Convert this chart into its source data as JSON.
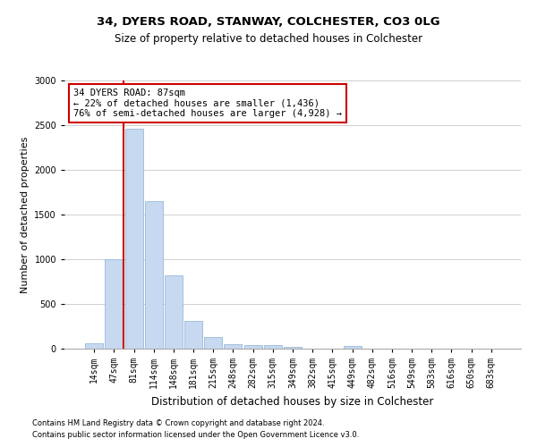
{
  "title1": "34, DYERS ROAD, STANWAY, COLCHESTER, CO3 0LG",
  "title2": "Size of property relative to detached houses in Colchester",
  "xlabel": "Distribution of detached houses by size in Colchester",
  "ylabel": "Number of detached properties",
  "bar_labels": [
    "14sqm",
    "47sqm",
    "81sqm",
    "114sqm",
    "148sqm",
    "181sqm",
    "215sqm",
    "248sqm",
    "282sqm",
    "315sqm",
    "349sqm",
    "382sqm",
    "415sqm",
    "449sqm",
    "482sqm",
    "516sqm",
    "549sqm",
    "583sqm",
    "616sqm",
    "650sqm",
    "683sqm"
  ],
  "bar_values": [
    60,
    1000,
    2460,
    1650,
    820,
    310,
    130,
    55,
    45,
    45,
    20,
    0,
    0,
    30,
    0,
    0,
    0,
    0,
    0,
    0,
    0
  ],
  "bar_color": "#c6d9f0",
  "bar_edge_color": "#9ab8d8",
  "grid_color": "#d0d0d0",
  "vline_x": 1.5,
  "vline_color": "#cc0000",
  "annotation_text": "34 DYERS ROAD: 87sqm\n← 22% of detached houses are smaller (1,436)\n76% of semi-detached houses are larger (4,928) →",
  "annotation_box_color": "#ffffff",
  "annotation_box_edge": "#cc0000",
  "footer1": "Contains HM Land Registry data © Crown copyright and database right 2024.",
  "footer2": "Contains public sector information licensed under the Open Government Licence v3.0.",
  "ylim": [
    0,
    3000
  ],
  "yticks": [
    0,
    500,
    1000,
    1500,
    2000,
    2500,
    3000
  ],
  "title1_fontsize": 9.5,
  "title2_fontsize": 8.5,
  "ylabel_fontsize": 8,
  "xlabel_fontsize": 8.5,
  "tick_fontsize": 7,
  "annot_fontsize": 7.5,
  "footer_fontsize": 6
}
